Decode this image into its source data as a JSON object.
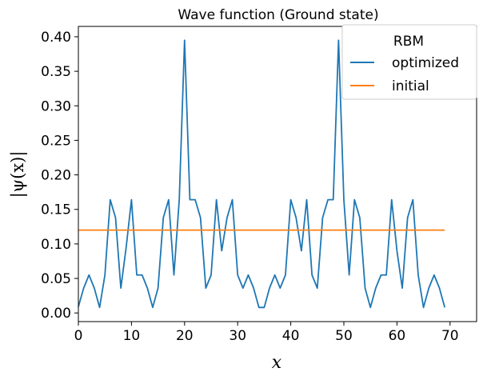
{
  "chart_data": {
    "type": "line",
    "title": "Wave function (Ground state)",
    "xlabel": "x",
    "ylabel": "|ψ(x)|",
    "xlim": [
      0,
      75
    ],
    "ylim": [
      -0.0125,
      0.415
    ],
    "xticks": [
      0,
      10,
      20,
      30,
      40,
      50,
      60,
      70
    ],
    "yticks": [
      0.0,
      0.05,
      0.1,
      0.15,
      0.2,
      0.25,
      0.3,
      0.35,
      0.4
    ],
    "xtick_labels": [
      "0",
      "10",
      "20",
      "30",
      "40",
      "50",
      "60",
      "70"
    ],
    "ytick_labels": [
      "0.00",
      "0.05",
      "0.10",
      "0.15",
      "0.20",
      "0.25",
      "0.30",
      "0.35",
      "0.40"
    ],
    "grid": false,
    "legend": {
      "title": "RBM",
      "placement": "top-right"
    },
    "series": [
      {
        "name": "optimized",
        "color": "#1f77b4",
        "x": [
          0,
          1,
          2,
          3,
          4,
          5,
          6,
          7,
          8,
          9,
          10,
          11,
          12,
          13,
          14,
          15,
          16,
          17,
          18,
          19,
          20,
          21,
          22,
          23,
          24,
          25,
          26,
          27,
          28,
          29,
          30,
          31,
          32,
          33,
          34,
          35,
          36,
          37,
          38,
          39,
          40,
          41,
          42,
          43,
          44,
          45,
          46,
          47,
          48,
          49,
          50,
          51,
          52,
          53,
          54,
          55,
          56,
          57,
          58,
          59,
          60,
          61,
          62,
          63,
          64,
          65,
          66,
          67,
          68,
          69
        ],
        "y": [
          0.009,
          0.036,
          0.055,
          0.036,
          0.008,
          0.055,
          0.164,
          0.138,
          0.036,
          0.095,
          0.164,
          0.055,
          0.055,
          0.036,
          0.008,
          0.036,
          0.138,
          0.164,
          0.055,
          0.164,
          0.395,
          0.164,
          0.164,
          0.138,
          0.036,
          0.055,
          0.164,
          0.09,
          0.138,
          0.164,
          0.055,
          0.036,
          0.055,
          0.036,
          0.008,
          0.008,
          0.036,
          0.055,
          0.036,
          0.055,
          0.164,
          0.138,
          0.09,
          0.164,
          0.055,
          0.036,
          0.138,
          0.164,
          0.164,
          0.395,
          0.164,
          0.055,
          0.164,
          0.138,
          0.036,
          0.008,
          0.036,
          0.055,
          0.055,
          0.164,
          0.09,
          0.036,
          0.138,
          0.164,
          0.055,
          0.008,
          0.036,
          0.055,
          0.036,
          0.008
        ]
      },
      {
        "name": "initial",
        "color": "#ff7f0e",
        "x": [
          0,
          69
        ],
        "y": [
          0.12,
          0.12
        ]
      }
    ]
  }
}
